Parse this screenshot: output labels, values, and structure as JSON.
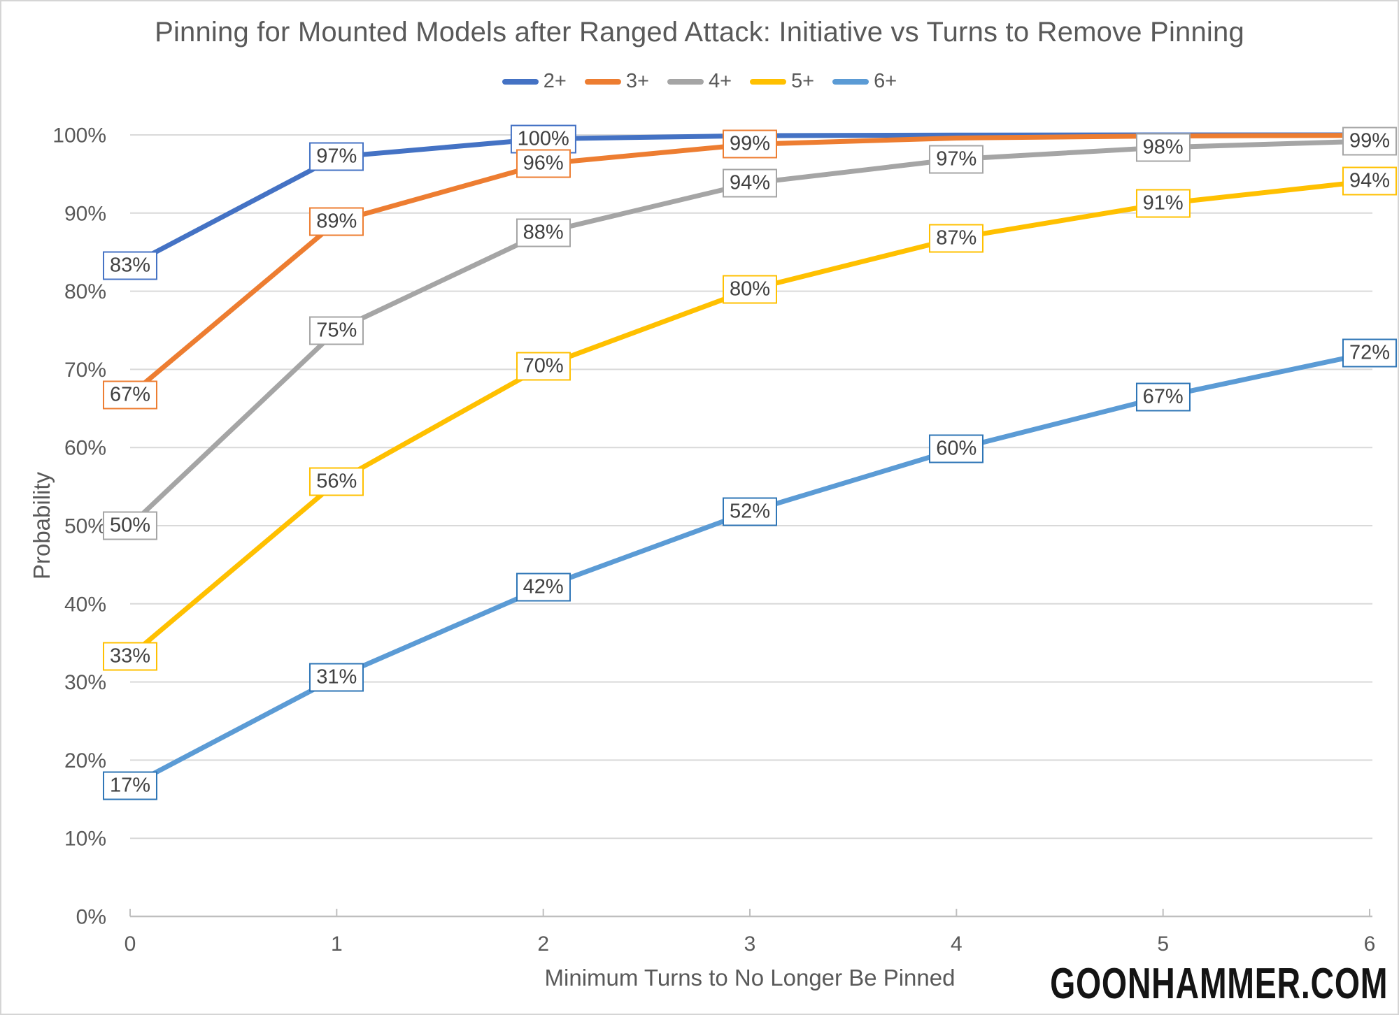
{
  "watermark": "GOONHAMMER.COM",
  "chart_data": {
    "type": "line",
    "title": "Pinning for Mounted Models after Ranged Attack: Initiative vs Turns to Remove Pinning",
    "xlabel": "Minimum Turns to No Longer Be Pinned",
    "ylabel": "Probability",
    "x": [
      0,
      1,
      2,
      3,
      4,
      5,
      6
    ],
    "xlim": [
      0,
      6
    ],
    "ylim": [
      0,
      100
    ],
    "ytick_step": 10,
    "ytick_suffix": "%",
    "grid": true,
    "legend_position": "top",
    "series": [
      {
        "name": "2+",
        "color": "#4472C4",
        "label_border": "#4472C4",
        "values": [
          83.3,
          97.2,
          99.5,
          99.9,
          99.98,
          100,
          100
        ],
        "labels": [
          "83%",
          "97%",
          "100%",
          null,
          null,
          null,
          null
        ]
      },
      {
        "name": "3+",
        "color": "#ED7D31",
        "label_border": "#ED7D31",
        "values": [
          66.7,
          88.9,
          96.3,
          98.8,
          99.6,
          99.86,
          99.95
        ],
        "labels": [
          "67%",
          "89%",
          "96%",
          "99%",
          null,
          null,
          null
        ]
      },
      {
        "name": "4+",
        "color": "#A5A5A5",
        "label_border": "#A5A5A5",
        "values": [
          50,
          75,
          87.5,
          93.8,
          96.9,
          98.4,
          99.2
        ],
        "labels": [
          "50%",
          "75%",
          "88%",
          "94%",
          "97%",
          "98%",
          "99%"
        ]
      },
      {
        "name": "5+",
        "color": "#FFC000",
        "label_border": "#FFC000",
        "values": [
          33.3,
          55.6,
          70.4,
          80.2,
          86.8,
          91.2,
          94.1
        ],
        "labels": [
          "33%",
          "56%",
          "70%",
          "80%",
          "87%",
          "91%",
          "94%"
        ]
      },
      {
        "name": "6+",
        "color": "#5B9BD5",
        "label_border": "#2E75B6",
        "values": [
          16.7,
          30.6,
          42.1,
          51.8,
          59.8,
          66.5,
          72.1
        ],
        "labels": [
          "17%",
          "31%",
          "42%",
          "52%",
          "60%",
          "67%",
          "72%"
        ]
      }
    ],
    "styles": {
      "grid_color": "#D9D9D9",
      "axis_color": "#BFBFBF",
      "tick_text_color": "#595959",
      "label_text_color": "#404040"
    }
  }
}
